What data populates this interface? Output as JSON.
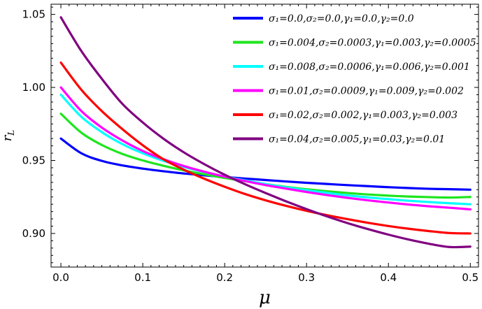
{
  "chart_data": {
    "type": "line",
    "title": "",
    "xlabel": "μ",
    "ylabel": "r_L",
    "xlim": [
      -0.012,
      0.51
    ],
    "ylim": [
      0.877,
      1.057
    ],
    "xticks": [
      0.0,
      0.1,
      0.2,
      0.3,
      0.4,
      0.5
    ],
    "xtick_labels": [
      "0.0",
      "0.1",
      "0.2",
      "0.3",
      "0.4",
      "0.5"
    ],
    "yticks": [
      0.9,
      0.95,
      1.0,
      1.05
    ],
    "ytick_labels": [
      "0.90",
      "0.95",
      "1.00",
      "1.05"
    ],
    "legend_position": "top-right",
    "grid": false,
    "x": [
      0.0,
      0.025,
      0.05,
      0.075,
      0.1,
      0.125,
      0.15,
      0.175,
      0.2,
      0.225,
      0.25,
      0.275,
      0.3,
      0.325,
      0.35,
      0.375,
      0.4,
      0.425,
      0.45,
      0.475,
      0.5
    ],
    "series": [
      {
        "name": "σ1=0.0,σ2=0.0,γ1=0.0,γ2=0.0",
        "color": "#0000ff",
        "legend_text": "σ₁=0.0,σ₂=0.0,γ₁=0.0,γ₂=0.0",
        "values": [
          0.965,
          0.9549,
          0.9497,
          0.9466,
          0.9444,
          0.9426,
          0.9411,
          0.9398,
          0.9387,
          0.9376,
          0.9366,
          0.9356,
          0.9347,
          0.9339,
          0.9331,
          0.9324,
          0.9317,
          0.9311,
          0.9306,
          0.9303,
          0.93
        ]
      },
      {
        "name": "σ1=0.004,σ2=0.0003,γ1=0.003,γ2=0.0005",
        "color": "#1ee51e",
        "legend_text": "σ₁=0.004,σ₂=0.0003,γ₁=0.003,γ₂=0.0005",
        "values": [
          0.982,
          0.969,
          0.9606,
          0.9545,
          0.95,
          0.9464,
          0.9432,
          0.9405,
          0.938,
          0.9358,
          0.9338,
          0.9319,
          0.9303,
          0.9289,
          0.9277,
          0.9267,
          0.9259,
          0.9253,
          0.9249,
          0.9246,
          0.925
        ]
      },
      {
        "name": "σ1=0.008,σ2=0.0006,γ1=0.006,γ2=0.001",
        "color": "#00ffff",
        "legend_text": "σ₁=0.008,σ₂=0.0006,γ₁=0.006,γ₂=0.001",
        "values": [
          0.995,
          0.9799,
          0.9694,
          0.9612,
          0.9549,
          0.9498,
          0.9456,
          0.9421,
          0.9391,
          0.9363,
          0.9338,
          0.9316,
          0.9296,
          0.9278,
          0.9261,
          0.9247,
          0.9235,
          0.9224,
          0.9215,
          0.9207,
          0.92
        ]
      },
      {
        "name": "σ1=0.01,σ2=0.0009,γ1=0.009,γ2=0.002",
        "color": "#ff00ff",
        "legend_text": "σ₁=0.01,σ₂=0.0009,γ₁=0.009,γ₂=0.002",
        "values": [
          1.0,
          0.9838,
          0.9725,
          0.9637,
          0.9565,
          0.9509,
          0.9462,
          0.9423,
          0.9389,
          0.9359,
          0.9331,
          0.9307,
          0.9284,
          0.9263,
          0.9244,
          0.9227,
          0.9212,
          0.9198,
          0.9186,
          0.9176,
          0.9165
        ]
      },
      {
        "name": "σ1=0.02,σ2=0.002,γ1=0.003,γ2=0.003",
        "color": "#ff0000",
        "legend_text": "σ₁=0.02,σ₂=0.002,γ₁=0.003,γ₂=0.003",
        "values": [
          1.017,
          0.9984,
          0.9838,
          0.9715,
          0.9604,
          0.9509,
          0.9437,
          0.9375,
          0.932,
          0.927,
          0.9227,
          0.9189,
          0.9155,
          0.9125,
          0.9098,
          0.9073,
          0.9051,
          0.9032,
          0.9016,
          0.9003,
          0.9
        ]
      },
      {
        "name": "σ1=0.04,σ2=0.005,γ1=0.03,γ2=0.01",
        "color": "#800080",
        "legend_text": "σ₁=0.04,σ₂=0.005,γ₁=0.03,γ₂=0.01",
        "values": [
          1.048,
          1.0249,
          1.0059,
          0.9888,
          0.976,
          0.965,
          0.9556,
          0.9475,
          0.9402,
          0.9337,
          0.9277,
          0.922,
          0.9167,
          0.9117,
          0.9071,
          0.903,
          0.8992,
          0.8958,
          0.8929,
          0.8907,
          0.891
        ]
      }
    ]
  }
}
